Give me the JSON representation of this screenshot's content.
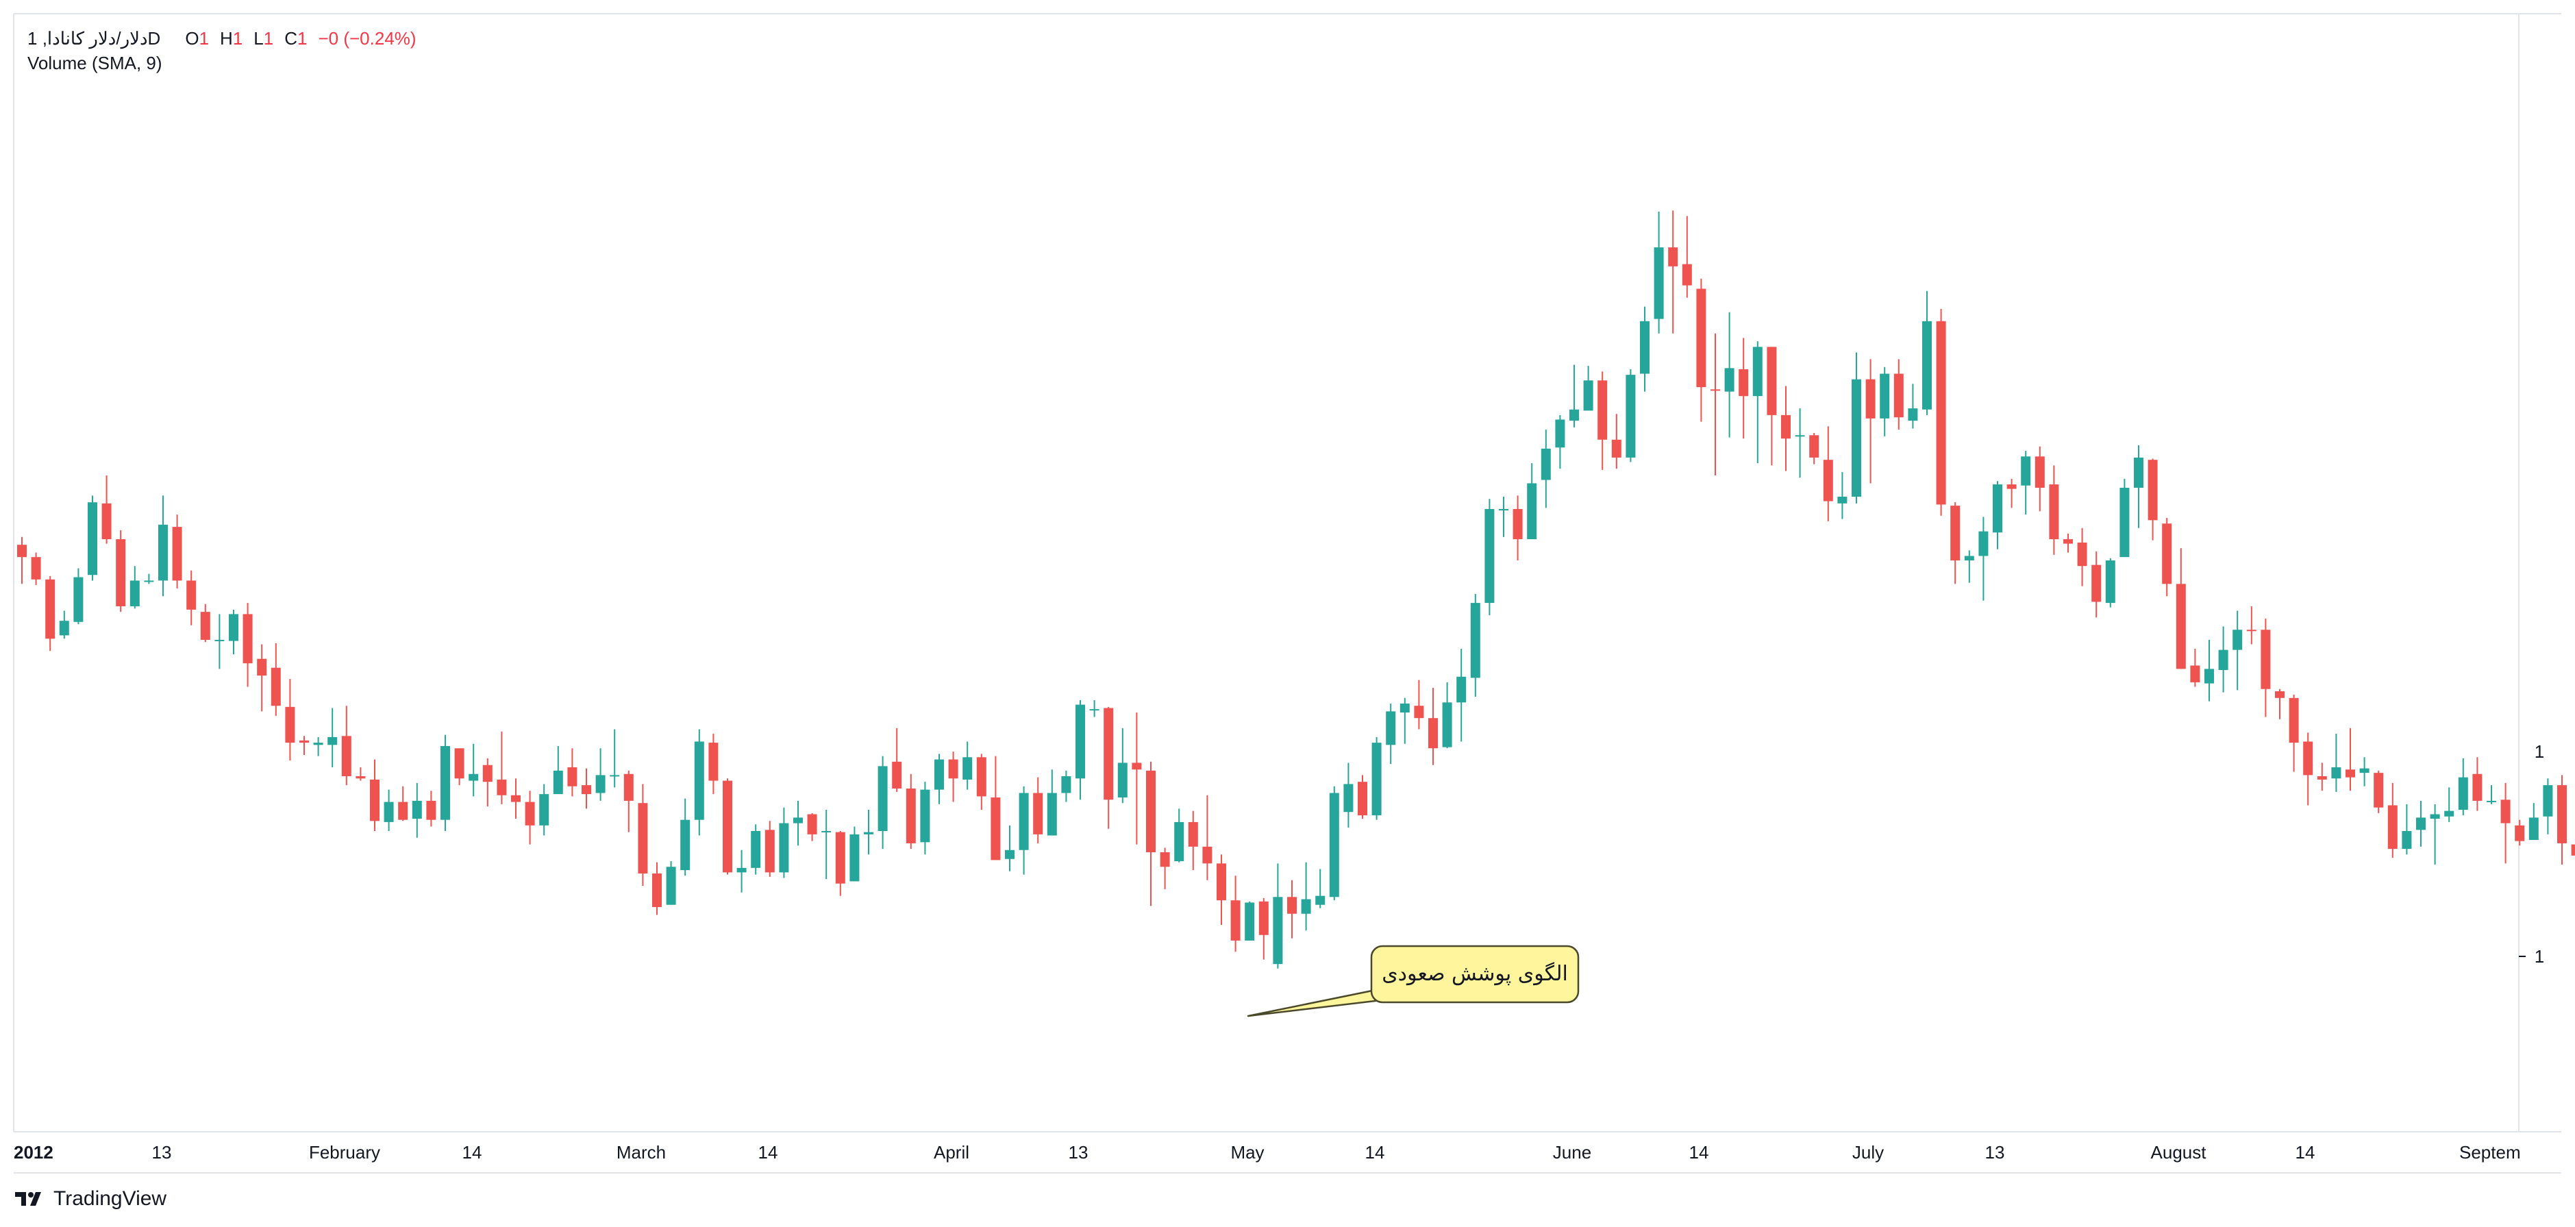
{
  "legend": {
    "symbol": "دلار/دلار کانادا, 1D",
    "o_label": "O",
    "o_value": "1",
    "h_label": "H",
    "h_value": "1",
    "l_label": "L",
    "l_value": "1",
    "c_label": "C",
    "c_value": "1",
    "change": "−0 (−0.24%)",
    "indicator": "Volume (SMA, 9)"
  },
  "annotation": {
    "text": "الگوی پوشش صعودی"
  },
  "branding": {
    "name": "TradingView"
  },
  "colors": {
    "up": "#26A69A",
    "down": "#EF5350",
    "grid_line": "#E0E3EB",
    "text": "#131722",
    "callout_fill": "#FFF59D",
    "callout_border": "#4A4A2A"
  },
  "chart_data": {
    "type": "candlestick",
    "y_axis_labels": [
      "1",
      "1"
    ],
    "x_axis_labels": [
      "2012",
      "13",
      "February",
      "14",
      "March",
      "14",
      "April",
      "13",
      "May",
      "14",
      "June",
      "14",
      "July",
      "13",
      "August",
      "14",
      "Septem"
    ],
    "ohlc": [
      [
        52.5,
        51.4,
        53.2,
        49.0
      ],
      [
        51.4,
        49.4,
        51.8,
        48.9
      ],
      [
        49.4,
        44.1,
        49.7,
        43.0
      ],
      [
        44.4,
        45.7,
        46.6,
        44.1
      ],
      [
        45.6,
        49.6,
        50.4,
        45.4
      ],
      [
        49.8,
        56.3,
        56.9,
        49.3
      ],
      [
        56.2,
        53.0,
        58.7,
        52.6
      ],
      [
        53.0,
        47.0,
        53.8,
        46.5
      ],
      [
        47.0,
        49.3,
        50.6,
        46.8
      ],
      [
        49.2,
        49.3,
        49.9,
        49.0
      ],
      [
        49.3,
        54.3,
        56.9,
        47.9
      ],
      [
        54.1,
        49.3,
        55.2,
        48.6
      ],
      [
        49.3,
        46.7,
        50.2,
        45.3
      ],
      [
        46.5,
        44.0,
        47.2,
        43.8
      ],
      [
        44.0,
        44.0,
        46.3,
        41.4
      ],
      [
        43.9,
        46.3,
        46.7,
        42.7
      ],
      [
        46.3,
        41.9,
        47.3,
        39.8
      ],
      [
        42.3,
        40.8,
        43.6,
        37.6
      ],
      [
        41.5,
        38.1,
        43.7,
        37.2
      ],
      [
        38.0,
        34.8,
        40.5,
        33.2
      ],
      [
        35.0,
        34.8,
        35.4,
        33.7
      ],
      [
        34.6,
        34.8,
        35.3,
        33.6
      ],
      [
        34.6,
        35.3,
        37.9,
        32.6
      ],
      [
        35.4,
        31.8,
        38.1,
        31.0
      ],
      [
        31.8,
        31.6,
        32.6,
        31.4
      ],
      [
        31.5,
        27.8,
        33.3,
        26.9
      ],
      [
        27.7,
        29.5,
        30.6,
        26.9
      ],
      [
        29.5,
        27.9,
        30.9,
        27.8
      ],
      [
        28.0,
        29.6,
        31.2,
        26.3
      ],
      [
        29.6,
        27.9,
        30.5,
        27.3
      ],
      [
        27.9,
        34.5,
        35.5,
        26.9
      ],
      [
        34.3,
        31.6,
        33.4,
        31.0
      ],
      [
        31.4,
        32.0,
        34.7,
        30.0
      ],
      [
        32.8,
        31.3,
        33.4,
        29.1
      ],
      [
        31.5,
        30.1,
        35.8,
        29.3
      ],
      [
        30.1,
        29.5,
        31.6,
        28.0
      ],
      [
        29.5,
        27.4,
        30.5,
        25.7
      ],
      [
        27.4,
        30.2,
        31.1,
        26.5
      ],
      [
        30.2,
        32.3,
        34.5,
        30.5
      ],
      [
        32.6,
        30.9,
        34.3,
        30.0
      ],
      [
        31.0,
        30.2,
        32.5,
        28.9
      ],
      [
        30.3,
        31.9,
        34.3,
        29.6
      ],
      [
        31.9,
        31.9,
        36.0,
        30.8
      ],
      [
        32.0,
        29.6,
        32.3,
        26.8
      ],
      [
        29.4,
        23.1,
        31.1,
        22.0
      ],
      [
        23.1,
        20.1,
        24.1,
        19.4
      ],
      [
        20.3,
        23.7,
        24.2,
        20.3
      ],
      [
        23.4,
        27.9,
        29.8,
        22.9
      ],
      [
        27.9,
        34.9,
        36.0,
        26.5
      ],
      [
        34.8,
        31.4,
        35.6,
        30.2
      ],
      [
        31.4,
        23.2,
        31.6,
        23.0
      ],
      [
        23.2,
        23.6,
        25.2,
        21.4
      ],
      [
        23.6,
        26.9,
        27.5,
        23.0
      ],
      [
        27.0,
        23.2,
        27.8,
        22.8
      ],
      [
        23.2,
        27.6,
        29.0,
        22.7
      ],
      [
        27.6,
        28.1,
        29.6,
        25.6
      ],
      [
        28.4,
        26.6,
        28.5,
        26.0
      ],
      [
        26.8,
        26.9,
        28.8,
        22.6
      ],
      [
        26.8,
        22.2,
        26.9,
        21.1
      ],
      [
        22.4,
        26.6,
        27.3,
        22.6
      ],
      [
        26.6,
        26.8,
        28.8,
        24.8
      ],
      [
        26.9,
        32.7,
        33.6,
        25.3
      ],
      [
        33.1,
        30.7,
        36.1,
        30.4
      ],
      [
        30.7,
        25.8,
        32.0,
        25.3
      ],
      [
        25.9,
        30.6,
        31.3,
        24.8
      ],
      [
        30.6,
        33.3,
        33.8,
        29.3
      ],
      [
        33.3,
        31.6,
        34.0,
        29.5
      ],
      [
        31.5,
        33.5,
        34.9,
        30.6
      ],
      [
        33.5,
        30.0,
        33.8,
        28.8
      ],
      [
        29.9,
        24.3,
        33.6,
        24.3
      ],
      [
        24.4,
        25.2,
        27.4,
        23.3
      ],
      [
        25.2,
        30.3,
        30.9,
        23.0
      ],
      [
        30.3,
        26.6,
        31.7,
        25.8
      ],
      [
        26.5,
        30.3,
        32.4,
        26.5
      ],
      [
        30.3,
        31.8,
        32.3,
        29.5
      ],
      [
        31.6,
        38.2,
        38.6,
        29.7
      ],
      [
        37.7,
        37.8,
        38.6,
        37.1
      ],
      [
        37.9,
        29.7,
        38.0,
        27.1
      ],
      [
        29.9,
        33.0,
        36.1,
        29.4
      ],
      [
        33.0,
        32.4,
        37.5,
        25.7
      ],
      [
        32.3,
        25.0,
        33.1,
        20.2
      ],
      [
        25.0,
        23.7,
        25.4,
        21.7
      ],
      [
        24.2,
        27.7,
        28.9,
        24.1
      ],
      [
        27.7,
        25.5,
        28.7,
        23.4
      ],
      [
        25.5,
        24.0,
        30.1,
        22.5
      ],
      [
        24.0,
        20.7,
        24.8,
        18.5
      ],
      [
        20.7,
        17.1,
        22.9,
        16.1
      ],
      [
        17.1,
        20.5,
        20.6,
        18.2
      ],
      [
        20.6,
        17.6,
        20.9,
        15.4
      ],
      [
        15.0,
        21.0,
        24.0,
        14.6
      ],
      [
        21.0,
        19.5,
        22.5,
        17.3
      ],
      [
        19.5,
        20.8,
        24.1,
        18.0
      ],
      [
        20.3,
        21.1,
        23.5,
        20.0
      ],
      [
        21.0,
        30.3,
        30.9,
        20.7
      ],
      [
        28.6,
        31.1,
        33.0,
        27.2
      ],
      [
        31.3,
        28.3,
        31.9,
        28.0
      ],
      [
        28.3,
        34.8,
        35.3,
        27.9
      ],
      [
        34.6,
        37.6,
        38.3,
        32.9
      ],
      [
        37.5,
        38.3,
        38.8,
        34.7
      ],
      [
        38.1,
        37.0,
        40.4,
        36.0
      ],
      [
        37.0,
        34.3,
        39.7,
        32.8
      ],
      [
        34.4,
        38.4,
        40.2,
        34.3
      ],
      [
        38.4,
        40.7,
        43.2,
        34.9
      ],
      [
        40.6,
        47.3,
        48.1,
        38.9
      ],
      [
        47.3,
        55.7,
        56.6,
        46.2
      ],
      [
        55.7,
        55.7,
        56.8,
        53.2
      ],
      [
        55.7,
        53.0,
        56.9,
        51.1
      ],
      [
        53.0,
        58.0,
        59.8,
        53.0
      ],
      [
        58.3,
        61.1,
        62.8,
        55.8
      ],
      [
        61.2,
        63.7,
        64.1,
        59.3
      ],
      [
        63.6,
        64.6,
        68.6,
        63.0
      ],
      [
        64.5,
        67.2,
        68.5,
        65.2
      ],
      [
        67.2,
        61.9,
        68.0,
        59.2
      ],
      [
        61.9,
        60.3,
        64.2,
        59.3
      ],
      [
        60.3,
        67.7,
        68.2,
        59.9
      ],
      [
        67.8,
        72.5,
        73.8,
        66.2
      ],
      [
        72.7,
        79.1,
        82.3,
        71.4
      ],
      [
        79.1,
        77.4,
        82.4,
        71.4
      ],
      [
        77.6,
        75.7,
        81.9,
        74.6
      ],
      [
        75.4,
        66.6,
        76.3,
        63.5
      ],
      [
        66.4,
        66.3,
        71.4,
        58.7
      ],
      [
        66.2,
        68.3,
        73.3,
        62.1
      ],
      [
        68.2,
        65.8,
        71.0,
        62.0
      ],
      [
        65.8,
        70.2,
        70.7,
        59.8
      ],
      [
        70.2,
        64.1,
        70.2,
        59.6
      ],
      [
        64.1,
        62.0,
        66.7,
        59.1
      ],
      [
        62.2,
        62.3,
        64.7,
        58.5
      ],
      [
        62.3,
        60.3,
        62.5,
        59.7
      ],
      [
        60.1,
        56.4,
        63.1,
        54.6
      ],
      [
        56.2,
        56.8,
        59.0,
        54.8
      ],
      [
        56.8,
        67.3,
        69.7,
        56.2
      ],
      [
        67.3,
        63.8,
        69.1,
        58.0
      ],
      [
        63.8,
        67.8,
        68.4,
        62.2
      ],
      [
        67.8,
        63.9,
        69.1,
        62.8
      ],
      [
        63.6,
        64.7,
        66.9,
        62.9
      ],
      [
        64.6,
        72.5,
        75.2,
        64.1
      ],
      [
        72.5,
        56.1,
        73.6,
        55.1
      ],
      [
        56.0,
        51.1,
        56.3,
        49.0
      ],
      [
        51.1,
        51.5,
        52.0,
        49.1
      ],
      [
        51.5,
        53.7,
        55.0,
        47.5
      ],
      [
        53.6,
        57.9,
        58.2,
        52.1
      ],
      [
        57.9,
        57.5,
        58.4,
        55.8
      ],
      [
        57.8,
        60.4,
        60.9,
        55.2
      ],
      [
        60.4,
        57.6,
        61.3,
        55.5
      ],
      [
        57.9,
        53.0,
        59.6,
        51.6
      ],
      [
        53.0,
        52.6,
        53.5,
        51.8
      ],
      [
        52.7,
        50.6,
        54.0,
        48.8
      ],
      [
        50.7,
        47.4,
        51.9,
        46.0
      ],
      [
        47.3,
        51.1,
        51.3,
        46.9
      ],
      [
        51.4,
        57.6,
        58.4,
        51.5
      ],
      [
        57.6,
        60.3,
        61.4,
        54.0
      ],
      [
        60.1,
        54.7,
        60.2,
        52.9
      ],
      [
        54.4,
        49.0,
        54.9,
        47.9
      ],
      [
        49.0,
        41.4,
        52.2,
        41.4
      ],
      [
        41.7,
        40.2,
        43.2,
        39.8
      ],
      [
        40.1,
        41.4,
        44.0,
        38.5
      ],
      [
        41.3,
        43.1,
        45.2,
        39.3
      ],
      [
        43.1,
        44.9,
        46.6,
        39.5
      ],
      [
        44.9,
        44.8,
        47.0,
        43.6
      ],
      [
        44.9,
        39.6,
        45.9,
        37.1
      ],
      [
        39.4,
        38.8,
        39.6,
        36.9
      ],
      [
        38.8,
        34.8,
        39.1,
        32.2
      ],
      [
        34.9,
        31.9,
        35.7,
        29.2
      ],
      [
        31.8,
        31.5,
        33.0,
        30.5
      ],
      [
        31.6,
        32.6,
        35.6,
        30.4
      ],
      [
        32.4,
        31.7,
        36.1,
        30.5
      ],
      [
        32.1,
        32.5,
        33.5,
        30.9
      ],
      [
        32.1,
        29.0,
        32.3,
        28.5
      ],
      [
        29.2,
        25.3,
        31.2,
        24.5
      ],
      [
        25.3,
        26.9,
        29.3,
        24.8
      ],
      [
        27.0,
        28.1,
        29.6,
        25.5
      ],
      [
        28.0,
        28.4,
        29.3,
        23.9
      ],
      [
        28.2,
        28.7,
        30.8,
        27.7
      ],
      [
        28.8,
        31.7,
        33.4,
        28.3
      ],
      [
        32.0,
        29.6,
        33.5,
        28.7
      ],
      [
        29.6,
        29.6,
        31.0,
        29.3
      ],
      [
        29.7,
        27.6,
        31.2,
        24.0
      ],
      [
        27.4,
        26.0,
        27.9,
        25.6
      ],
      [
        26.1,
        28.1,
        29.4,
        26.1
      ],
      [
        28.2,
        31.0,
        31.6,
        26.6
      ],
      [
        31.0,
        25.8,
        31.9,
        23.9
      ],
      [
        25.7,
        24.7,
        27.2,
        24.4
      ],
      [
        24.7,
        24.7,
        25.1,
        24.1
      ]
    ]
  }
}
